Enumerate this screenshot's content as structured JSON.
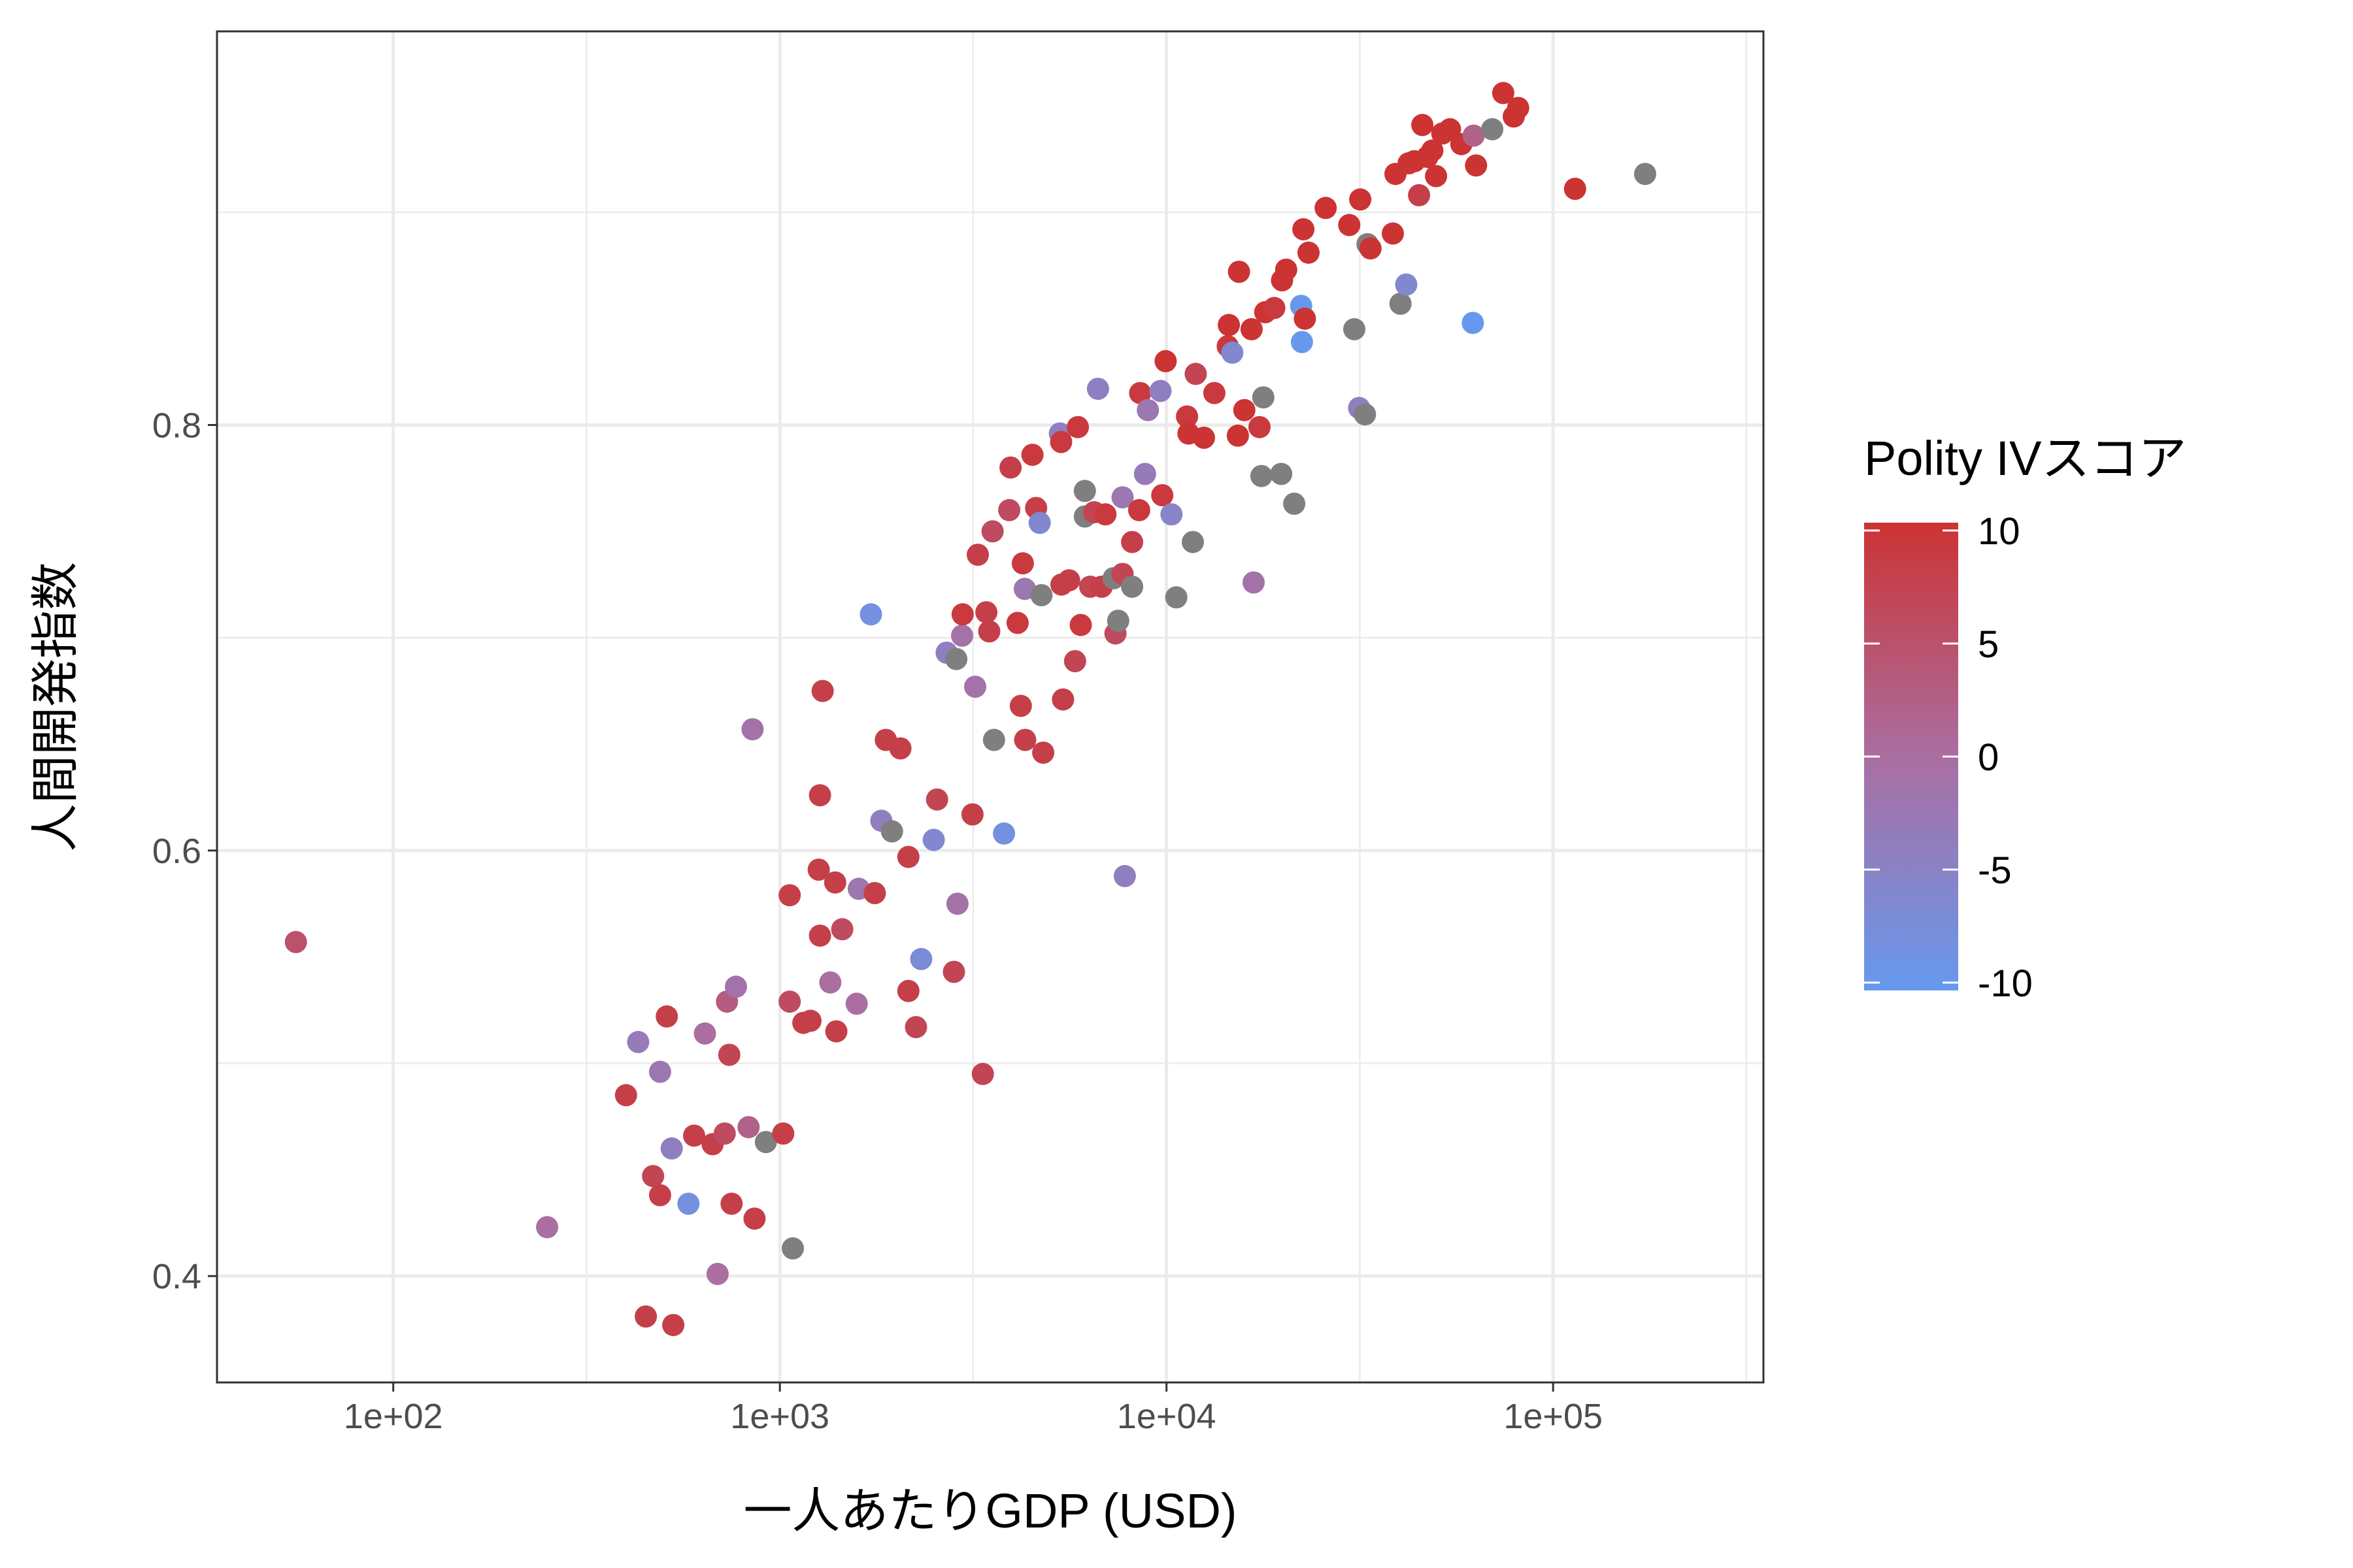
{
  "chart_data": {
    "type": "scatter",
    "xlabel": "一人あたりGDP (USD)",
    "ylabel": "人間開発指数",
    "x_scale": "log10",
    "xlim": [
      35,
      350000
    ],
    "ylim": [
      0.35,
      0.985
    ],
    "x_ticks": [
      100,
      1000,
      10000,
      100000
    ],
    "x_tick_labels": [
      "1e+02",
      "1e+03",
      "1e+04",
      "1e+05"
    ],
    "y_ticks": [
      0.4,
      0.6,
      0.8
    ],
    "y_tick_labels": [
      "0.4",
      "0.6",
      "0.8"
    ],
    "grid": true,
    "legend": {
      "title": "Polity IVスコア",
      "placement": "right",
      "type": "continuous",
      "range": [
        -10,
        10
      ],
      "breaks": [
        10,
        5,
        0,
        -5,
        -10
      ],
      "break_labels": [
        "10",
        "5",
        "0",
        "-5",
        "-10"
      ],
      "low_color": "#6699ee",
      "mid_color": "#aa6ea1",
      "high_color": "#cc3333",
      "na_color": "#7f7f7f"
    },
    "points": [
      {
        "x": 56,
        "y": 0.557,
        "c": 5
      },
      {
        "x": 250,
        "y": 0.423,
        "c": 0
      },
      {
        "x": 400,
        "y": 0.485,
        "c": 8
      },
      {
        "x": 430,
        "y": 0.51,
        "c": -3
      },
      {
        "x": 450,
        "y": 0.381,
        "c": 8
      },
      {
        "x": 470,
        "y": 0.447,
        "c": 7
      },
      {
        "x": 490,
        "y": 0.496,
        "c": -2
      },
      {
        "x": 490,
        "y": 0.438,
        "c": 8
      },
      {
        "x": 510,
        "y": 0.522,
        "c": 8
      },
      {
        "x": 525,
        "y": 0.46,
        "c": -4
      },
      {
        "x": 530,
        "y": 0.377,
        "c": 8
      },
      {
        "x": 580,
        "y": 0.434,
        "c": -8
      },
      {
        "x": 600,
        "y": 0.466,
        "c": 8
      },
      {
        "x": 640,
        "y": 0.514,
        "c": 0
      },
      {
        "x": 670,
        "y": 0.462,
        "c": 8
      },
      {
        "x": 690,
        "y": 0.401,
        "c": 0
      },
      {
        "x": 720,
        "y": 0.467,
        "c": 6
      },
      {
        "x": 730,
        "y": 0.529,
        "c": 3
      },
      {
        "x": 740,
        "y": 0.504,
        "c": 7
      },
      {
        "x": 750,
        "y": 0.434,
        "c": 8
      },
      {
        "x": 770,
        "y": 0.536,
        "c": -1
      },
      {
        "x": 830,
        "y": 0.47,
        "c": 2
      },
      {
        "x": 860,
        "y": 0.427,
        "c": 8
      },
      {
        "x": 850,
        "y": 0.657,
        "c": -1
      },
      {
        "x": 920,
        "y": 0.463,
        "c": null
      },
      {
        "x": 1020,
        "y": 0.467,
        "c": 8
      },
      {
        "x": 1060,
        "y": 0.579,
        "c": 8
      },
      {
        "x": 1060,
        "y": 0.529,
        "c": 6
      },
      {
        "x": 1080,
        "y": 0.413,
        "c": null
      },
      {
        "x": 1150,
        "y": 0.519,
        "c": 8
      },
      {
        "x": 1200,
        "y": 0.52,
        "c": 8
      },
      {
        "x": 1260,
        "y": 0.591,
        "c": 8
      },
      {
        "x": 1270,
        "y": 0.56,
        "c": 8
      },
      {
        "x": 1270,
        "y": 0.626,
        "c": 8
      },
      {
        "x": 1290,
        "y": 0.675,
        "c": 8
      },
      {
        "x": 1350,
        "y": 0.538,
        "c": 0
      },
      {
        "x": 1390,
        "y": 0.585,
        "c": 8
      },
      {
        "x": 1400,
        "y": 0.515,
        "c": 8
      },
      {
        "x": 1450,
        "y": 0.563,
        "c": 6
      },
      {
        "x": 1580,
        "y": 0.528,
        "c": 0
      },
      {
        "x": 1600,
        "y": 0.582,
        "c": -2
      },
      {
        "x": 1720,
        "y": 0.711,
        "c": -8
      },
      {
        "x": 1760,
        "y": 0.58,
        "c": 8
      },
      {
        "x": 1830,
        "y": 0.614,
        "c": -4
      },
      {
        "x": 1880,
        "y": 0.652,
        "c": 8
      },
      {
        "x": 1950,
        "y": 0.609,
        "c": null
      },
      {
        "x": 2050,
        "y": 0.648,
        "c": 8
      },
      {
        "x": 2150,
        "y": 0.597,
        "c": 8
      },
      {
        "x": 2150,
        "y": 0.534,
        "c": 8
      },
      {
        "x": 2250,
        "y": 0.517,
        "c": 7
      },
      {
        "x": 2320,
        "y": 0.549,
        "c": -7
      },
      {
        "x": 2500,
        "y": 0.605,
        "c": -6
      },
      {
        "x": 2550,
        "y": 0.624,
        "c": 7
      },
      {
        "x": 2700,
        "y": 0.693,
        "c": -4
      },
      {
        "x": 2820,
        "y": 0.543,
        "c": 7
      },
      {
        "x": 2880,
        "y": 0.575,
        "c": -1
      },
      {
        "x": 2860,
        "y": 0.69,
        "c": null
      },
      {
        "x": 2960,
        "y": 0.701,
        "c": -1
      },
      {
        "x": 2970,
        "y": 0.711,
        "c": 9
      },
      {
        "x": 3150,
        "y": 0.617,
        "c": 8
      },
      {
        "x": 3200,
        "y": 0.677,
        "c": -1
      },
      {
        "x": 3250,
        "y": 0.739,
        "c": 8
      },
      {
        "x": 3350,
        "y": 0.495,
        "c": 7
      },
      {
        "x": 3420,
        "y": 0.712,
        "c": 8
      },
      {
        "x": 3480,
        "y": 0.703,
        "c": 8
      },
      {
        "x": 3550,
        "y": 0.75,
        "c": 6
      },
      {
        "x": 3580,
        "y": 0.652,
        "c": null
      },
      {
        "x": 3800,
        "y": 0.608,
        "c": -8
      },
      {
        "x": 3920,
        "y": 0.76,
        "c": 6
      },
      {
        "x": 3950,
        "y": 0.78,
        "c": 8
      },
      {
        "x": 4120,
        "y": 0.707,
        "c": 9
      },
      {
        "x": 4200,
        "y": 0.668,
        "c": 8
      },
      {
        "x": 4250,
        "y": 0.735,
        "c": 9
      },
      {
        "x": 4300,
        "y": 0.723,
        "c": -2
      },
      {
        "x": 4310,
        "y": 0.652,
        "c": 8
      },
      {
        "x": 4500,
        "y": 0.786,
        "c": 9
      },
      {
        "x": 4600,
        "y": 0.761,
        "c": 8
      },
      {
        "x": 4700,
        "y": 0.754,
        "c": -6
      },
      {
        "x": 4750,
        "y": 0.72,
        "c": null
      },
      {
        "x": 4800,
        "y": 0.646,
        "c": 8
      },
      {
        "x": 5300,
        "y": 0.796,
        "c": -4
      },
      {
        "x": 5340,
        "y": 0.792,
        "c": 9
      },
      {
        "x": 5350,
        "y": 0.725,
        "c": 8
      },
      {
        "x": 5400,
        "y": 0.671,
        "c": 8
      },
      {
        "x": 5600,
        "y": 0.727,
        "c": 8
      },
      {
        "x": 5800,
        "y": 0.689,
        "c": 7
      },
      {
        "x": 5900,
        "y": 0.799,
        "c": 9
      },
      {
        "x": 6000,
        "y": 0.706,
        "c": 9
      },
      {
        "x": 6150,
        "y": 0.769,
        "c": null
      },
      {
        "x": 6150,
        "y": 0.757,
        "c": null
      },
      {
        "x": 6350,
        "y": 0.724,
        "c": 7
      },
      {
        "x": 6500,
        "y": 0.759,
        "c": 7
      },
      {
        "x": 6650,
        "y": 0.817,
        "c": -4
      },
      {
        "x": 6800,
        "y": 0.724,
        "c": 8
      },
      {
        "x": 6950,
        "y": 0.758,
        "c": 9
      },
      {
        "x": 7300,
        "y": 0.728,
        "c": null
      },
      {
        "x": 7380,
        "y": 0.702,
        "c": 6
      },
      {
        "x": 7500,
        "y": 0.708,
        "c": null
      },
      {
        "x": 7700,
        "y": 0.73,
        "c": 7
      },
      {
        "x": 7700,
        "y": 0.766,
        "c": -2
      },
      {
        "x": 7800,
        "y": 0.588,
        "c": -4
      },
      {
        "x": 8150,
        "y": 0.724,
        "c": null
      },
      {
        "x": 8150,
        "y": 0.745,
        "c": 8
      },
      {
        "x": 8500,
        "y": 0.76,
        "c": 9
      },
      {
        "x": 8550,
        "y": 0.815,
        "c": 9
      },
      {
        "x": 8800,
        "y": 0.777,
        "c": -3
      },
      {
        "x": 8950,
        "y": 0.807,
        "c": -2
      },
      {
        "x": 9650,
        "y": 0.816,
        "c": -4
      },
      {
        "x": 9750,
        "y": 0.767,
        "c": 9
      },
      {
        "x": 9950,
        "y": 0.83,
        "c": 10
      },
      {
        "x": 10300,
        "y": 0.758,
        "c": -5
      },
      {
        "x": 10600,
        "y": 0.719,
        "c": null
      },
      {
        "x": 11300,
        "y": 0.804,
        "c": 9
      },
      {
        "x": 11400,
        "y": 0.796,
        "c": 10
      },
      {
        "x": 11700,
        "y": 0.745,
        "c": null
      },
      {
        "x": 11900,
        "y": 0.824,
        "c": 7
      },
      {
        "x": 12500,
        "y": 0.794,
        "c": 10
      },
      {
        "x": 13300,
        "y": 0.815,
        "c": 9
      },
      {
        "x": 14400,
        "y": 0.837,
        "c": 9
      },
      {
        "x": 14500,
        "y": 0.847,
        "c": 10
      },
      {
        "x": 14800,
        "y": 0.834,
        "c": -6
      },
      {
        "x": 15300,
        "y": 0.795,
        "c": 10
      },
      {
        "x": 15400,
        "y": 0.872,
        "c": 10
      },
      {
        "x": 15900,
        "y": 0.807,
        "c": 10
      },
      {
        "x": 16600,
        "y": 0.845,
        "c": 10
      },
      {
        "x": 16800,
        "y": 0.726,
        "c": -1
      },
      {
        "x": 17400,
        "y": 0.799,
        "c": 9
      },
      {
        "x": 17600,
        "y": 0.776,
        "c": null
      },
      {
        "x": 17800,
        "y": 0.813,
        "c": null
      },
      {
        "x": 18000,
        "y": 0.853,
        "c": 10
      },
      {
        "x": 19000,
        "y": 0.855,
        "c": 9
      },
      {
        "x": 19800,
        "y": 0.777,
        "c": null
      },
      {
        "x": 19900,
        "y": 0.868,
        "c": 10
      },
      {
        "x": 20400,
        "y": 0.873,
        "c": 10
      },
      {
        "x": 21400,
        "y": 0.763,
        "c": null
      },
      {
        "x": 22300,
        "y": 0.856,
        "c": -10
      },
      {
        "x": 22400,
        "y": 0.839,
        "c": -10
      },
      {
        "x": 22600,
        "y": 0.892,
        "c": 10
      },
      {
        "x": 22800,
        "y": 0.85,
        "c": 10
      },
      {
        "x": 23300,
        "y": 0.881,
        "c": 10
      },
      {
        "x": 25800,
        "y": 0.902,
        "c": 10
      },
      {
        "x": 29700,
        "y": 0.894,
        "c": 10
      },
      {
        "x": 30600,
        "y": 0.845,
        "c": null
      },
      {
        "x": 31500,
        "y": 0.808,
        "c": -4
      },
      {
        "x": 31700,
        "y": 0.906,
        "c": 10
      },
      {
        "x": 32600,
        "y": 0.805,
        "c": null
      },
      {
        "x": 33100,
        "y": 0.885,
        "c": null
      },
      {
        "x": 33700,
        "y": 0.883,
        "c": 10
      },
      {
        "x": 38500,
        "y": 0.89,
        "c": 10
      },
      {
        "x": 39100,
        "y": 0.918,
        "c": 10
      },
      {
        "x": 40300,
        "y": 0.857,
        "c": null
      },
      {
        "x": 41700,
        "y": 0.866,
        "c": -6
      },
      {
        "x": 42300,
        "y": 0.923,
        "c": 10
      },
      {
        "x": 43800,
        "y": 0.924,
        "c": 10
      },
      {
        "x": 45000,
        "y": 0.908,
        "c": 8
      },
      {
        "x": 45900,
        "y": 0.941,
        "c": 10
      },
      {
        "x": 47300,
        "y": 0.926,
        "c": 10
      },
      {
        "x": 48700,
        "y": 0.929,
        "c": 10
      },
      {
        "x": 49800,
        "y": 0.917,
        "c": 10
      },
      {
        "x": 51700,
        "y": 0.937,
        "c": 10
      },
      {
        "x": 54100,
        "y": 0.939,
        "c": 10
      },
      {
        "x": 57900,
        "y": 0.932,
        "c": 10
      },
      {
        "x": 62000,
        "y": 0.848,
        "c": -10
      },
      {
        "x": 62300,
        "y": 0.936,
        "c": 2
      },
      {
        "x": 63200,
        "y": 0.922,
        "c": 10
      },
      {
        "x": 69600,
        "y": 0.939,
        "c": null
      },
      {
        "x": 74300,
        "y": 0.956,
        "c": 10
      },
      {
        "x": 79100,
        "y": 0.945,
        "c": 10
      },
      {
        "x": 81200,
        "y": 0.949,
        "c": 10
      },
      {
        "x": 114000,
        "y": 0.911,
        "c": 10
      },
      {
        "x": 173000,
        "y": 0.918,
        "c": null
      }
    ]
  }
}
